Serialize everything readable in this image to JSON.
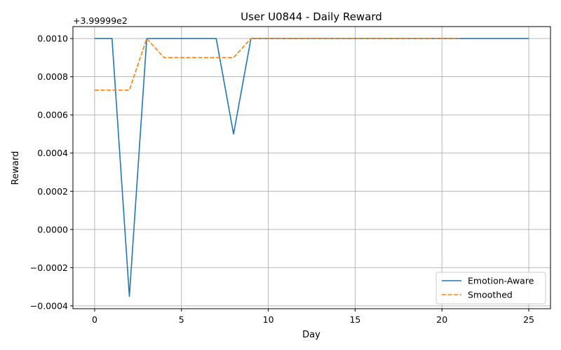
{
  "chart_data": {
    "type": "line",
    "title": "User U0844 - Daily Reward",
    "xlabel": "Day",
    "ylabel": "Reward",
    "offset_text": "+3.99999e2",
    "xlim": [
      -1.25,
      26.25
    ],
    "ylim": [
      -0.000415,
      0.0010625
    ],
    "xticks": [
      0,
      5,
      10,
      15,
      20,
      25
    ],
    "yticks": [
      -0.0004,
      -0.0002,
      0.0,
      0.0002,
      0.0004,
      0.0006,
      0.0008,
      0.001
    ],
    "ytick_labels": [
      "−0.0004",
      "−0.0002",
      "0.0000",
      "0.0002",
      "0.0004",
      "0.0006",
      "0.0008",
      "0.0010"
    ],
    "grid": true,
    "legend_position": "lower-right",
    "series": [
      {
        "name": "Emotion-Aware",
        "color": "#1f77b4",
        "style": "solid",
        "x": [
          0,
          1,
          2,
          3,
          4,
          5,
          6,
          7,
          8,
          9,
          10,
          11,
          12,
          13,
          14,
          15,
          16,
          17,
          18,
          19,
          20,
          21,
          22,
          23,
          24,
          25
        ],
        "y": [
          0.001,
          0.001,
          -0.00035,
          0.001,
          0.001,
          0.001,
          0.001,
          0.001,
          0.0005,
          0.001,
          0.001,
          0.001,
          0.001,
          0.001,
          0.001,
          0.001,
          0.001,
          0.001,
          0.001,
          0.001,
          0.001,
          0.001,
          0.001,
          0.001,
          0.001,
          0.001
        ]
      },
      {
        "name": "Smoothed",
        "color": "#ff7f0e",
        "style": "dashed",
        "x": [
          0,
          1,
          2,
          3,
          4,
          5,
          6,
          7,
          8,
          9,
          10,
          11,
          12,
          13,
          14,
          15,
          16,
          17,
          18,
          19,
          20,
          21
        ],
        "y": [
          0.00073,
          0.00073,
          0.00073,
          0.001,
          0.0009,
          0.0009,
          0.0009,
          0.0009,
          0.0009,
          0.001,
          0.001,
          0.001,
          0.001,
          0.001,
          0.001,
          0.001,
          0.001,
          0.001,
          0.001,
          0.001,
          0.001,
          0.001
        ]
      }
    ]
  }
}
